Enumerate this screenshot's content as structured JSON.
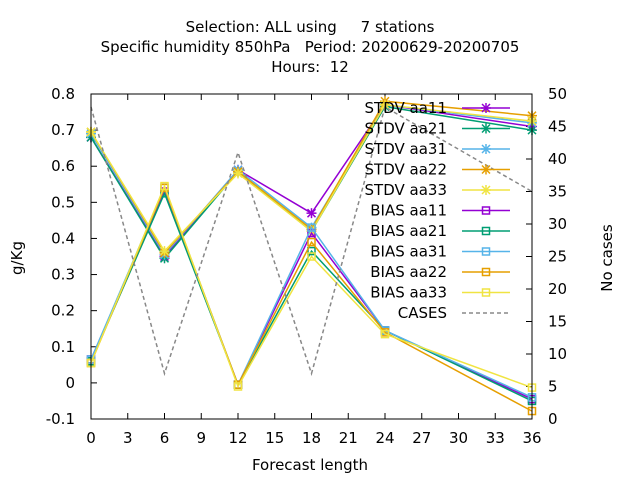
{
  "chart_data": {
    "type": "line",
    "title_lines": [
      "Selection: ALL using     7 stations",
      "Specific humidity 850hPa   Period: 20200629-20200705",
      "Hours:  12"
    ],
    "xlabel": "Forecast length",
    "ylabel": "g/Kg",
    "y2label": "No cases",
    "x": [
      0,
      6,
      12,
      18,
      24,
      36
    ],
    "xlim": [
      0,
      36
    ],
    "xticks": [
      0,
      3,
      6,
      9,
      12,
      15,
      18,
      21,
      24,
      27,
      30,
      33,
      36
    ],
    "ylim": [
      -0.1,
      0.8
    ],
    "yticks": [
      -0.1,
      0,
      0.1,
      0.2,
      0.3,
      0.4,
      0.5,
      0.6,
      0.7,
      0.8
    ],
    "ytick_labels": [
      "-0.1",
      "0",
      "0.1",
      "0.2",
      "0.3",
      "0.4",
      "0.5",
      "0.6",
      "0.7",
      "0.8"
    ],
    "y2lim": [
      0,
      50
    ],
    "y2ticks": [
      0,
      5,
      10,
      15,
      20,
      25,
      30,
      35,
      40,
      45,
      50
    ],
    "grid": false,
    "legend_position": "top-right",
    "series": [
      {
        "name": "STDV aa11",
        "axis": "y1",
        "color": "#9400d3",
        "marker": "x",
        "dash": false,
        "values": [
          0.68,
          0.35,
          0.59,
          0.47,
          0.77,
          0.71
        ]
      },
      {
        "name": "STDV aa21",
        "axis": "y1",
        "color": "#009e73",
        "marker": "x",
        "dash": false,
        "values": [
          0.68,
          0.345,
          0.585,
          0.42,
          0.765,
          0.7
        ]
      },
      {
        "name": "STDV aa31",
        "axis": "y1",
        "color": "#56b4e9",
        "marker": "x",
        "dash": false,
        "values": [
          0.69,
          0.355,
          0.59,
          0.43,
          0.77,
          0.72
        ]
      },
      {
        "name": "STDV aa22",
        "axis": "y1",
        "color": "#e69f00",
        "marker": "x",
        "dash": false,
        "values": [
          0.695,
          0.36,
          0.585,
          0.425,
          0.78,
          0.74
        ]
      },
      {
        "name": "STDV aa33",
        "axis": "y1",
        "color": "#f0e442",
        "marker": "x",
        "dash": false,
        "values": [
          0.695,
          0.365,
          0.58,
          0.42,
          0.77,
          0.725
        ]
      },
      {
        "name": "BIAS aa11",
        "axis": "y1",
        "color": "#9400d3",
        "marker": "box",
        "dash": false,
        "values": [
          0.065,
          0.53,
          -0.005,
          0.415,
          0.145,
          -0.045
        ]
      },
      {
        "name": "BIAS aa21",
        "axis": "y1",
        "color": "#009e73",
        "marker": "box",
        "dash": false,
        "values": [
          0.06,
          0.525,
          -0.005,
          0.365,
          0.145,
          -0.05
        ]
      },
      {
        "name": "BIAS aa31",
        "axis": "y1",
        "color": "#56b4e9",
        "marker": "box",
        "dash": false,
        "values": [
          0.065,
          0.54,
          -0.005,
          0.43,
          0.145,
          -0.04
        ]
      },
      {
        "name": "BIAS aa22",
        "axis": "y1",
        "color": "#e69f00",
        "marker": "box",
        "dash": false,
        "values": [
          0.055,
          0.54,
          -0.005,
          0.39,
          0.14,
          -0.078
        ]
      },
      {
        "name": "BIAS aa33",
        "axis": "y1",
        "color": "#f0e442",
        "marker": "box",
        "dash": false,
        "values": [
          0.055,
          0.545,
          -0.01,
          0.35,
          0.135,
          -0.013
        ]
      },
      {
        "name": "CASES",
        "axis": "y2",
        "color": "#888888",
        "marker": "none",
        "dash": true,
        "values": [
          48,
          7,
          41,
          7,
          48,
          35
        ]
      }
    ]
  }
}
